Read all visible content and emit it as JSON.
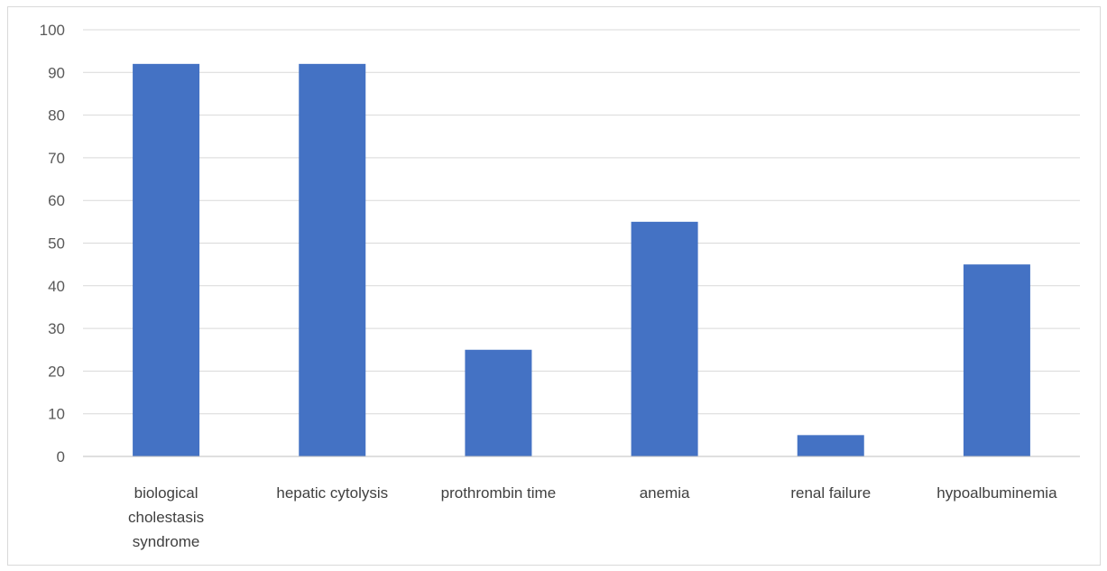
{
  "chart_data": {
    "type": "bar",
    "title": "",
    "xlabel": "",
    "ylabel": "",
    "categories": [
      [
        "biological",
        "cholestasis",
        "syndrome"
      ],
      [
        "hepatic cytolysis"
      ],
      [
        "prothrombin time"
      ],
      [
        "anemia"
      ],
      [
        "renal failure"
      ],
      [
        "hypoalbuminemia"
      ]
    ],
    "values": [
      92,
      92,
      25,
      55,
      5,
      45
    ],
    "ylim": [
      0,
      100
    ],
    "yticks": [
      0,
      10,
      20,
      30,
      40,
      50,
      60,
      70,
      80,
      90,
      100
    ],
    "grid": true,
    "legend": "none",
    "colors": {
      "bar": "#4472C4",
      "grid": "#d9d9d9",
      "axis": "#bfbfbf"
    }
  }
}
